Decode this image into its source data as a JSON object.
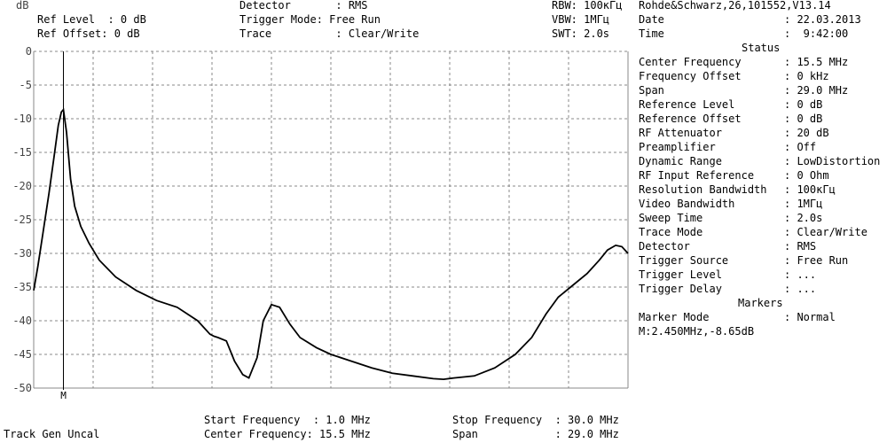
{
  "header": {
    "unit": "dB",
    "ref_level": "Ref Level  : 0 dB",
    "ref_offset": "Ref Offset: 0 dB",
    "detector": "Detector       : RMS",
    "trigger_mode": "Trigger Mode: Free Run",
    "trace": "Trace          : Clear/Write",
    "rbw": "RBW: 100кГц",
    "vbw": "VBW: 1МГц",
    "swt": "SWT: 2.0s",
    "instrument": "Rohde&Schwarz,26,101552,V13.14",
    "date_label": "Date",
    "date_value": ": 22.03.2013",
    "time_label": "Time",
    "time_value": ":  9:42:00"
  },
  "status": {
    "title": "Status",
    "items": [
      {
        "label": "Center Frequency",
        "value": ": 15.5 MHz"
      },
      {
        "label": "Frequency Offset",
        "value": ": 0 kHz"
      },
      {
        "label": "Span",
        "value": ": 29.0 MHz"
      },
      {
        "label": "Reference Level",
        "value": ": 0 dB"
      },
      {
        "label": "Reference Offset",
        "value": ": 0 dB"
      },
      {
        "label": "RF Attenuator",
        "value": ": 20 dB"
      },
      {
        "label": "Preamplifier",
        "value": ": Off"
      },
      {
        "label": "Dynamic Range",
        "value": ": LowDistortion"
      },
      {
        "label": "RF Input Reference",
        "value": ": 0 Ohm"
      },
      {
        "label": "Resolution Bandwidth",
        "value": ": 100кГц"
      },
      {
        "label": "Video Bandwidth",
        "value": ": 1МГц"
      },
      {
        "label": "Sweep Time",
        "value": ": 2.0s"
      },
      {
        "label": "Trace Mode",
        "value": ": Clear/Write"
      },
      {
        "label": "Detector",
        "value": ": RMS"
      },
      {
        "label": "Trigger Source",
        "value": ": Free Run"
      },
      {
        "label": "Trigger Level",
        "value": ": ..."
      },
      {
        "label": "Trigger Delay",
        "value": ": ..."
      }
    ],
    "markers_title": "Markers",
    "marker_mode_label": "Marker Mode",
    "marker_mode_value": ": Normal",
    "marker_readout": "M:2.450MHz,-8.65dB"
  },
  "footer": {
    "track_gen": "Track Gen Uncal",
    "start_frequency": "Start Frequency  : 1.0 MHz",
    "center_frequency": "Center Frequency: 15.5 MHz",
    "stop_frequency": "Stop Frequency  : 30.0 MHz",
    "span": "Span            : 29.0 MHz"
  },
  "chart_data": {
    "type": "line",
    "title": "",
    "xlabel": "",
    "ylabel": "dB",
    "x_unit": "MHz",
    "xlim": [
      1.0,
      30.0
    ],
    "ylim": [
      -50,
      0
    ],
    "y_ticks": [
      0,
      -5,
      -10,
      -15,
      -20,
      -25,
      -30,
      -35,
      -40,
      -45,
      -50
    ],
    "grid": true,
    "marker": {
      "label": "M",
      "x": 2.45,
      "y": -8.65
    },
    "series": [
      {
        "x": [
          1.0,
          1.2,
          1.45,
          1.75,
          2.0,
          2.2,
          2.35,
          2.45,
          2.6,
          2.8,
          3.0,
          3.3,
          3.7,
          4.2,
          5.0,
          6.0,
          7.0,
          8.0,
          9.0,
          9.6,
          9.8,
          10.0,
          10.4,
          10.8,
          11.2,
          11.5,
          11.9,
          12.2,
          12.6,
          13.0,
          13.5,
          14.0,
          14.8,
          15.5,
          16.5,
          17.5,
          18.5,
          19.5,
          20.5,
          21.0,
          21.5,
          22.5,
          23.5,
          24.5,
          25.3,
          26.0,
          26.6,
          27.2,
          28.0,
          28.6,
          29.0,
          29.4,
          29.7,
          30.0
        ],
        "y": [
          -35.5,
          -32.0,
          -27.0,
          -21.0,
          -15.5,
          -11.0,
          -9.0,
          -8.65,
          -12.0,
          -19.0,
          -23.0,
          -26.0,
          -28.5,
          -31.0,
          -33.5,
          -35.5,
          -37.0,
          -38.0,
          -40.0,
          -42.0,
          -42.3,
          -42.5,
          -43.0,
          -46.0,
          -48.0,
          -48.5,
          -45.5,
          -40.0,
          -37.6,
          -38.0,
          -40.5,
          -42.5,
          -44.0,
          -45.0,
          -46.0,
          -47.0,
          -47.8,
          -48.2,
          -48.6,
          -48.7,
          -48.5,
          -48.2,
          -47.0,
          -45.0,
          -42.5,
          -39.0,
          -36.5,
          -35.0,
          -33.0,
          -31.0,
          -29.5,
          -28.8,
          -29.0,
          -30.0
        ]
      }
    ]
  }
}
